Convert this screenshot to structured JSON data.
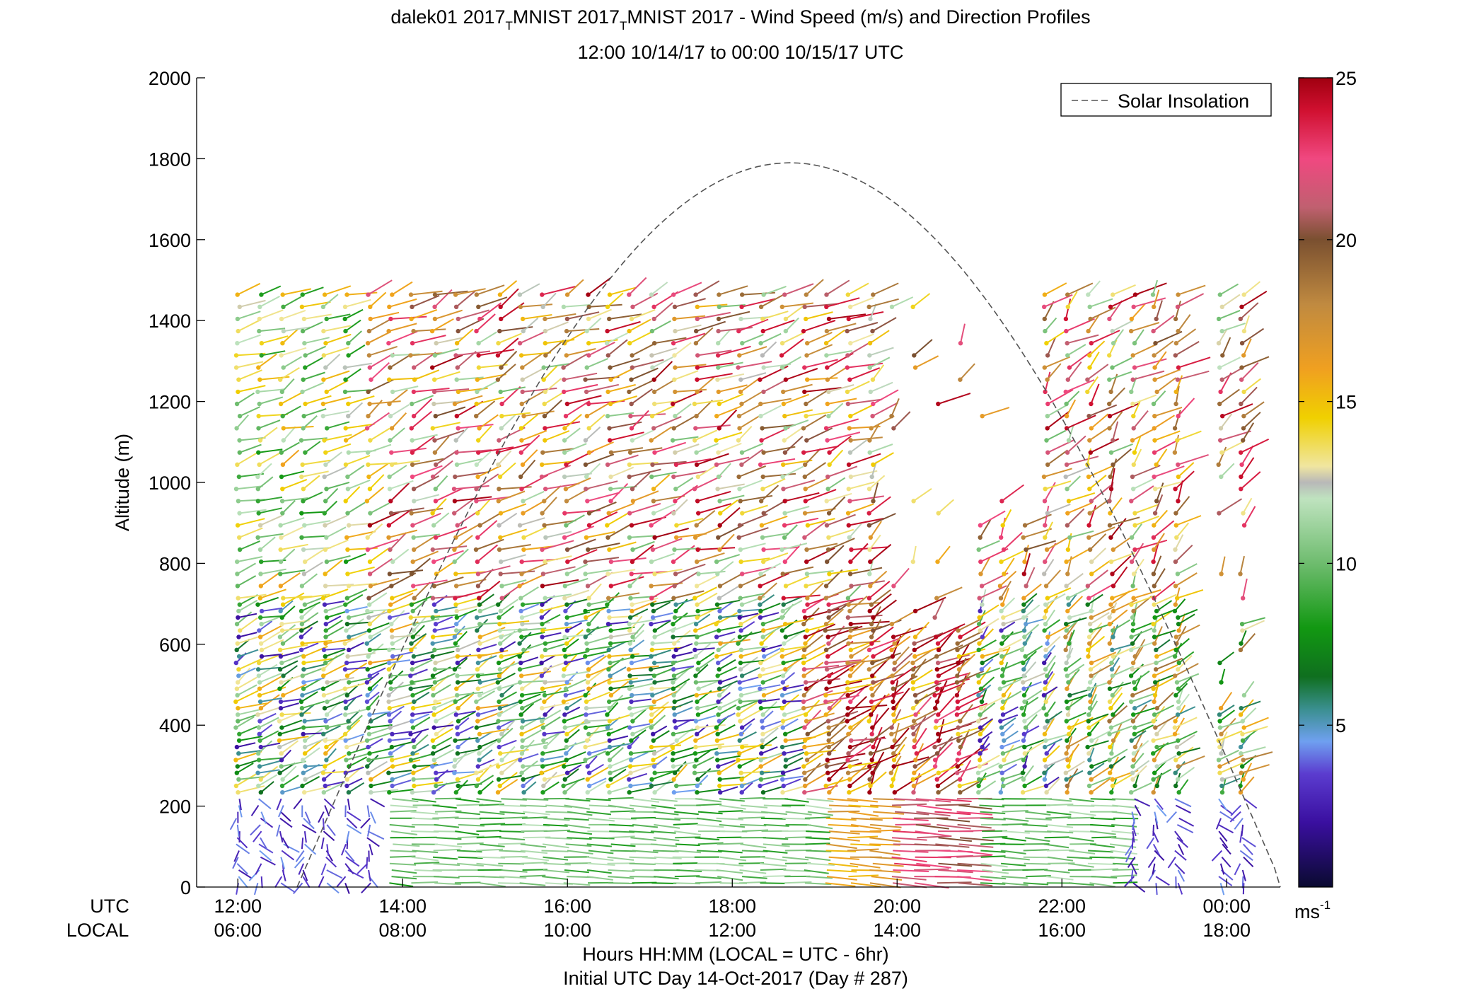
{
  "chart_data": {
    "type": "wind-profile",
    "title_line1": "dalek01 2017",
    "title_sub1": "T",
    "title_line1b": "MNIST 2017",
    "title_sub2": "T",
    "title_line1c": "MNIST 2017 - Wind Speed (m/s) and Direction Profiles",
    "title_line2": "12:00 10/14/17 to 00:00 10/15/17  UTC",
    "ylabel": "Altitude (m)",
    "ylim": [
      0,
      2000
    ],
    "yticks": [
      "0",
      "200",
      "400",
      "600",
      "800",
      "1000",
      "1200",
      "1400",
      "1600",
      "1800",
      "2000"
    ],
    "xlim_hours": [
      11.5,
      24.65
    ],
    "xticks_hours": [
      12,
      14,
      16,
      18,
      20,
      22,
      24
    ],
    "utc_label": "UTC",
    "local_label": "LOCAL",
    "xticks_utc": [
      "12:00",
      "14:00",
      "16:00",
      "18:00",
      "20:00",
      "22:00",
      "00:00"
    ],
    "xticks_local": [
      "06:00",
      "08:00",
      "10:00",
      "12:00",
      "14:00",
      "16:00",
      "18:00"
    ],
    "xlabel_line1": "Hours HH:MM  (LOCAL = UTC - 6hr)",
    "xlabel_line2": "Initial UTC Day 14-Oct-2017 (Day # 287)",
    "legend_entry": "Solar Insolation",
    "legend_placement": "top-right",
    "solar_insolation": {
      "start_hour": 12.72,
      "end_hour": 24.68,
      "peak_hour": 18.83,
      "peak_altitude_m": 1790,
      "line_style": "dashed",
      "color": "#555555"
    },
    "colorbar": {
      "range": [
        0,
        25
      ],
      "ticks": [
        "5",
        "10",
        "15",
        "20",
        "25"
      ],
      "unit_label": "ms",
      "unit_exponent": "-1",
      "colormap_stops": [
        [
          0.0,
          "#0a0a30"
        ],
        [
          2.0,
          "#3a0fa0"
        ],
        [
          3.5,
          "#5b3ccf"
        ],
        [
          4.5,
          "#6fa0f0"
        ],
        [
          5.5,
          "#3a8f8f"
        ],
        [
          6.5,
          "#0f6f1f"
        ],
        [
          8.0,
          "#129812"
        ],
        [
          10.0,
          "#6ebc6e"
        ],
        [
          12.0,
          "#bfe3bf"
        ],
        [
          12.5,
          "#b8b8b8"
        ],
        [
          13.0,
          "#f0e6a0"
        ],
        [
          14.5,
          "#f0d000"
        ],
        [
          16.0,
          "#f0a020"
        ],
        [
          18.0,
          "#c08a40"
        ],
        [
          20.0,
          "#7a5030"
        ],
        [
          21.0,
          "#c06070"
        ],
        [
          22.5,
          "#f04880"
        ],
        [
          24.0,
          "#d01030"
        ],
        [
          25.0,
          "#a00010"
        ]
      ]
    },
    "sample_barbs": [
      {
        "hour": 12.0,
        "alt_m": 1480,
        "speed": 15,
        "dir_deg": 300
      },
      {
        "hour": 12.5,
        "alt_m": 1300,
        "speed": 14,
        "dir_deg": 290
      },
      {
        "hour": 13.0,
        "alt_m": 1100,
        "speed": 10,
        "dir_deg": 280
      },
      {
        "hour": 14.0,
        "alt_m": 1400,
        "speed": 24,
        "dir_deg": 310
      },
      {
        "hour": 15.0,
        "alt_m": 1200,
        "speed": 18,
        "dir_deg": 290
      },
      {
        "hour": 16.0,
        "alt_m": 1000,
        "speed": 14,
        "dir_deg": 280
      },
      {
        "hour": 18.0,
        "alt_m": 1400,
        "speed": 10,
        "dir_deg": 300
      },
      {
        "hour": 19.0,
        "alt_m": 1200,
        "speed": 20,
        "dir_deg": 285
      },
      {
        "hour": 20.0,
        "alt_m": 1400,
        "speed": 24,
        "dir_deg": 300
      },
      {
        "hour": 20.5,
        "alt_m": 600,
        "speed": 24,
        "dir_deg": 330
      },
      {
        "hour": 22.0,
        "alt_m": 1300,
        "speed": 24,
        "dir_deg": 330
      },
      {
        "hour": 23.0,
        "alt_m": 1000,
        "speed": 15,
        "dir_deg": 300
      },
      {
        "hour": 24.0,
        "alt_m": 1200,
        "speed": 24,
        "dir_deg": 340
      },
      {
        "hour": 12.0,
        "alt_m": 150,
        "speed": 2,
        "dir_deg": 200
      },
      {
        "hour": 15.0,
        "alt_m": 150,
        "speed": 10,
        "dir_deg": 250
      },
      {
        "hour": 19.5,
        "alt_m": 100,
        "speed": 18,
        "dir_deg": 270
      },
      {
        "hour": 20.5,
        "alt_m": 100,
        "speed": 23,
        "dir_deg": 270
      },
      {
        "hour": 24.0,
        "alt_m": 100,
        "speed": 3,
        "dir_deg": 180
      }
    ]
  }
}
